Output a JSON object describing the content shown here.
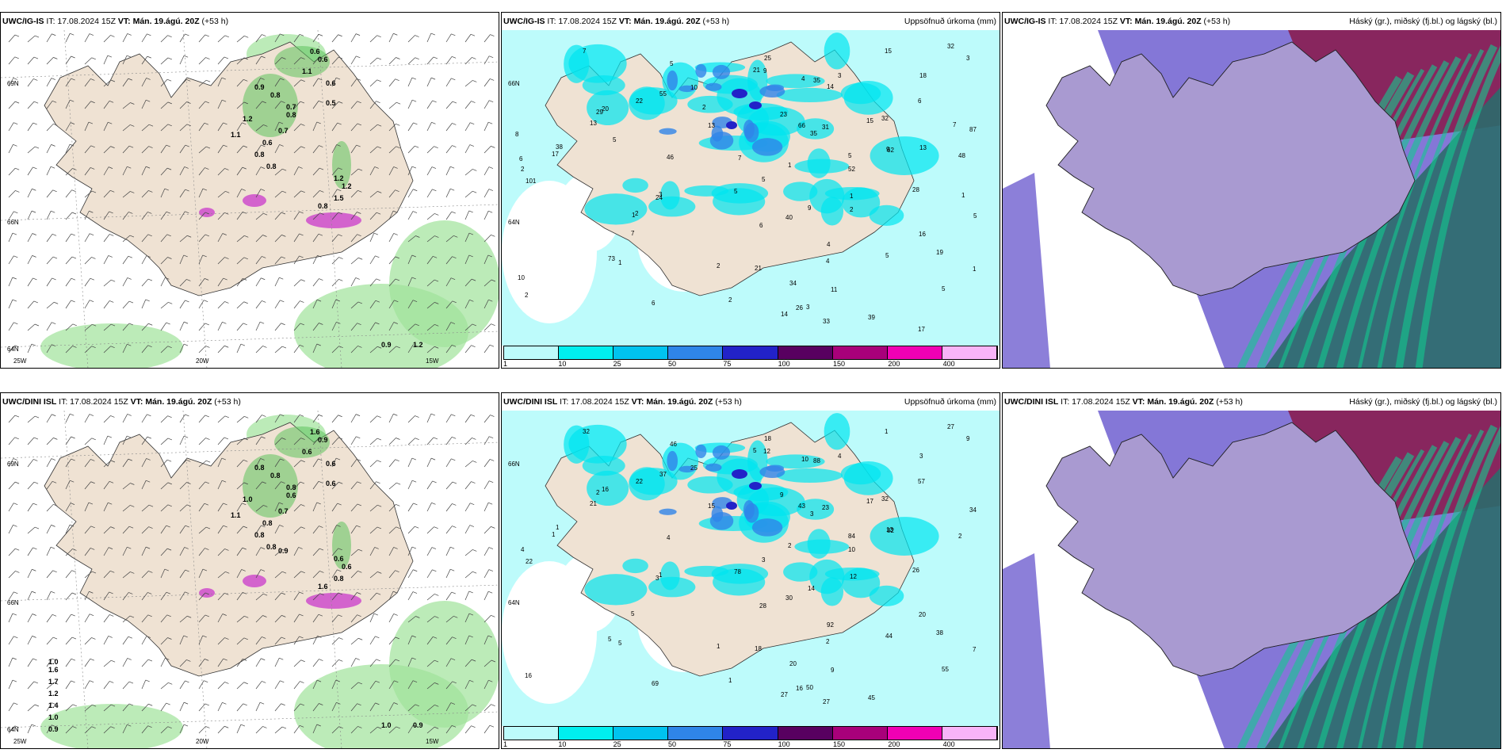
{
  "panels": [
    {
      "model": "UWC/IG-IS",
      "it": "IT: 17.08.2024 15Z",
      "vt": "VT: Mán. 19.ágú. 20Z",
      "lead": "(+53 h)",
      "right": "",
      "type": "wind",
      "labels": [
        "0.6",
        "0.6",
        "1.1",
        "0.6",
        "0.9",
        "0.8",
        "0.7",
        "0.8",
        "0.5",
        "1.2",
        "0.7",
        "1.1",
        "0.6",
        "0.8",
        "0.8",
        "1.2",
        "1.2",
        "1.5",
        "0.8",
        "0.9",
        "1.2"
      ],
      "axes": [
        "69N",
        "66N",
        "64N",
        "25W",
        "20W",
        "15W"
      ]
    },
    {
      "model": "UWC/IG-IS",
      "it": "IT: 17.08.2024 15Z",
      "vt": "VT: Mán. 19.ágú. 20Z",
      "lead": "(+53 h)",
      "right": "Uppsöfnuð úrkoma (mm)",
      "type": "precip",
      "labels": [
        "7",
        "6",
        "7",
        "5",
        "5",
        "6",
        "6",
        "5",
        "4",
        "5",
        "3",
        "5",
        "20",
        "16",
        "32",
        "62",
        "39",
        "101",
        "66",
        "35",
        "40",
        "87",
        "28",
        "19",
        "73",
        "52",
        "55",
        "33",
        "23",
        "13",
        "31",
        "15",
        "9",
        "25",
        "34",
        "21",
        "9",
        "13",
        "11",
        "22",
        "14",
        "26",
        "32",
        "10",
        "35",
        "21",
        "29",
        "38",
        "15",
        "24",
        "46",
        "48",
        "17",
        "4",
        "3",
        "18",
        "2",
        "1",
        "3",
        "1",
        "2",
        "1",
        "4",
        "2",
        "2",
        "3",
        "1",
        "5",
        "9",
        "6",
        "1",
        "7",
        "14",
        "5",
        "13",
        "17",
        "10",
        "8",
        "7",
        "2",
        "2",
        "5",
        "2",
        "1"
      ],
      "axes": [
        "66N",
        "64N"
      ],
      "colorbar": {
        "ticks": [
          "1",
          "10",
          "25",
          "50",
          "75",
          "100",
          "150",
          "200",
          "400"
        ],
        "colors": [
          "#bdfbfb",
          "#00efef",
          "#00c3ef",
          "#2f85e8",
          "#2222c8",
          "#580060",
          "#a8007a",
          "#f000b4",
          "#f8b4f8"
        ]
      }
    },
    {
      "model": "UWC/IG-IS",
      "it": "IT: 17.08.2024 15Z",
      "vt": "VT: Mán. 19.ágú. 20Z",
      "lead": "(+53 h)",
      "right": "Háský (gr.), miðský (fj.bl.) og lágský (bl.)",
      "type": "cloud"
    },
    {
      "model": "UWC/DINI ISL",
      "it": "IT: 17.08.2024 15Z",
      "vt": "VT: Mán. 19.ágú. 20Z",
      "lead": "(+53 h)",
      "right": "",
      "type": "wind",
      "labels": [
        "1.6",
        "0.9",
        "0.6",
        "0.6",
        "0.8",
        "0.8",
        "0.8",
        "0.6",
        "0.6",
        "1.0",
        "0.7",
        "1.1",
        "0.8",
        "0.8",
        "0.8",
        "0.6",
        "0.6",
        "0.8",
        "1.6",
        "1.0",
        "0.9",
        "0.9",
        "1.0",
        "1.6",
        "1.7",
        "1.2",
        "1.4",
        "1.0",
        "0.9"
      ],
      "axes": [
        "69N",
        "66N",
        "64N",
        "25W",
        "20W",
        "15W"
      ]
    },
    {
      "model": "UWC/DINI ISL",
      "it": "IT: 17.08.2024 15Z",
      "vt": "VT: Mán. 19.ágú. 20Z",
      "lead": "(+53 h)",
      "right": "Uppsöfnuð úrkoma (mm)",
      "type": "precip",
      "labels": [
        "5",
        "28",
        "32",
        "46",
        "44",
        "57",
        "69",
        "84",
        "92",
        "78",
        "50",
        "55",
        "16",
        "20",
        "27",
        "82",
        "45",
        "22",
        "43",
        "88",
        "30",
        "34",
        "26",
        "38",
        "5",
        "10",
        "37",
        "27",
        "9",
        "21",
        "23",
        "17",
        "13",
        "18",
        "20",
        "18",
        "14",
        "15",
        "9",
        "22",
        "27",
        "16",
        "32",
        "25",
        "3",
        "5",
        "2",
        "1",
        "1",
        "3",
        "4",
        "2",
        "1",
        "2",
        "1",
        "3",
        "1",
        "5",
        "9",
        "7",
        "4",
        "12",
        "10",
        "16",
        "1",
        "4",
        "2",
        "3",
        "12"
      ],
      "axes": [
        "66N",
        "64N"
      ],
      "colorbar": {
        "ticks": [
          "1",
          "10",
          "25",
          "50",
          "75",
          "100",
          "150",
          "200",
          "400"
        ],
        "colors": [
          "#bdfbfb",
          "#00efef",
          "#00c3ef",
          "#2f85e8",
          "#2222c8",
          "#580060",
          "#a8007a",
          "#f000b4",
          "#f8b4f8"
        ]
      }
    },
    {
      "model": "UWC/DINI ISL",
      "it": "IT: 17.08.2024 15Z",
      "vt": "VT: Mán. 19.ágú. 20Z",
      "lead": "(+53 h)",
      "right": "Háský (gr.), miðský (fj.bl.) og lágský (bl.)",
      "type": "cloud"
    }
  ],
  "colors": {
    "land": "#efe2d3",
    "wind_green": "#9fe39a",
    "precip_light": "#bdfbfb",
    "precip_cyan": "#00e5f0",
    "cloud_high": "#8a1240",
    "cloud_mid": "#6f5fd0",
    "cloud_low": "#2b6b6b"
  }
}
